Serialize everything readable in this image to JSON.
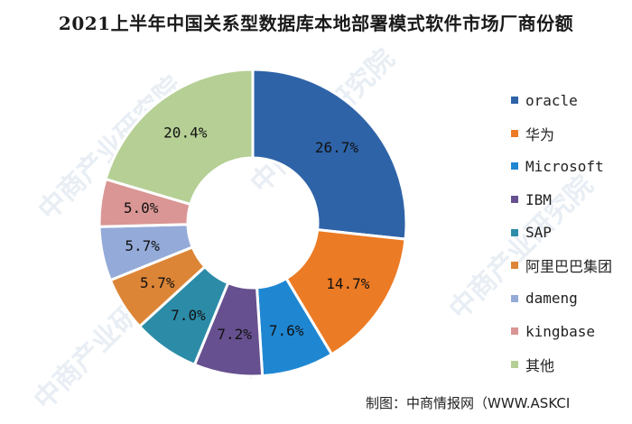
{
  "title": "2021上半年中国关系型数据库本地部署模式软件市场厂商份额",
  "footer": "制图：中商情报网（WWW.ASKCI",
  "watermark": "中商产业研究院",
  "chart_data": {
    "type": "pie",
    "donut": true,
    "title": "2021上半年中国关系型数据库本地部署模式软件市场厂商份额",
    "legend_position": "right",
    "slices": [
      {
        "name": "oracle",
        "value": 26.7,
        "label": "26.7%",
        "color": "#2e63a8"
      },
      {
        "name": "华为",
        "value": 14.7,
        "label": "14.7%",
        "color": "#ec7b25"
      },
      {
        "name": "Microsoft",
        "value": 7.6,
        "label": "7.6%",
        "color": "#1f87d2"
      },
      {
        "name": "IBM",
        "value": 7.2,
        "label": "7.2%",
        "color": "#66508f"
      },
      {
        "name": "SAP",
        "value": 7.0,
        "label": "7.0%",
        "color": "#2c8ca8"
      },
      {
        "name": "阿里巴巴集团",
        "value": 5.7,
        "label": "5.7%",
        "color": "#dd8537"
      },
      {
        "name": "dameng",
        "value": 5.7,
        "label": "5.7%",
        "color": "#94abd9"
      },
      {
        "name": "kingbase",
        "value": 5.0,
        "label": "5.0%",
        "color": "#d99694"
      },
      {
        "name": "其他",
        "value": 20.4,
        "label": "20.4%",
        "color": "#b5cf94"
      }
    ]
  }
}
